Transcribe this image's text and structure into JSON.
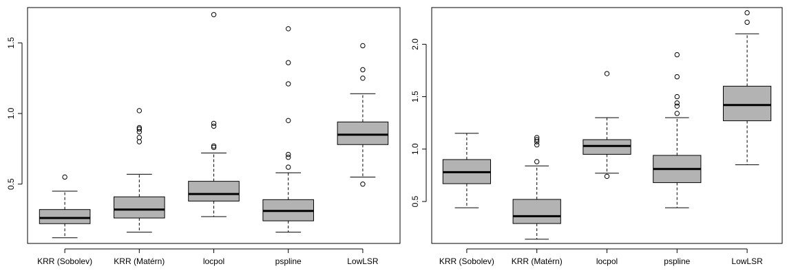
{
  "chart_data": [
    {
      "type": "boxplot",
      "categories": [
        "KRR (Sobolev)",
        "KRR (Matérn)",
        "locpol",
        "pspline",
        "LowLSR"
      ],
      "ylim": [
        0.08,
        1.75
      ],
      "yticks": [
        "0.5",
        "1.0",
        "1.5"
      ],
      "grid": false,
      "box_color": "#b3b3b3",
      "boxes": [
        {
          "category": "KRR (Sobolev)",
          "whisker_low": 0.12,
          "q1": 0.22,
          "median": 0.26,
          "q3": 0.32,
          "whisker_high": 0.45,
          "outliers": [
            0.55
          ]
        },
        {
          "category": "KRR (Matérn)",
          "whisker_low": 0.16,
          "q1": 0.26,
          "median": 0.32,
          "q3": 0.41,
          "whisker_high": 0.57,
          "outliers": [
            0.8,
            0.83,
            0.87,
            0.89,
            0.9,
            1.02
          ]
        },
        {
          "category": "locpol",
          "whisker_low": 0.27,
          "q1": 0.38,
          "median": 0.43,
          "q3": 0.52,
          "whisker_high": 0.72,
          "outliers": [
            0.76,
            0.77,
            0.91,
            0.93,
            1.7
          ]
        },
        {
          "category": "pspline",
          "whisker_low": 0.16,
          "q1": 0.24,
          "median": 0.31,
          "q3": 0.39,
          "whisker_high": 0.58,
          "outliers": [
            0.62,
            0.69,
            0.71,
            0.95,
            1.21,
            1.36,
            1.6
          ]
        },
        {
          "category": "LowLSR",
          "whisker_low": 0.55,
          "q1": 0.78,
          "median": 0.85,
          "q3": 0.94,
          "whisker_high": 1.14,
          "outliers": [
            0.5,
            1.25,
            1.31,
            1.48
          ]
        }
      ]
    },
    {
      "type": "boxplot",
      "categories": [
        "KRR (Sobolev)",
        "KRR (Matérn)",
        "locpol",
        "pspline",
        "LowLSR"
      ],
      "ylim": [
        0.1,
        2.35
      ],
      "yticks": [
        "0.5",
        "1.0",
        "1.5",
        "2.0"
      ],
      "grid": false,
      "box_color": "#b3b3b3",
      "boxes": [
        {
          "category": "KRR (Sobolev)",
          "whisker_low": 0.44,
          "q1": 0.67,
          "median": 0.78,
          "q3": 0.9,
          "whisker_high": 1.15,
          "outliers": []
        },
        {
          "category": "KRR (Matérn)",
          "whisker_low": 0.14,
          "q1": 0.29,
          "median": 0.36,
          "q3": 0.52,
          "whisker_high": 0.84,
          "outliers": [
            0.88,
            1.04,
            1.07,
            1.09,
            1.11
          ]
        },
        {
          "category": "locpol",
          "whisker_low": 0.77,
          "q1": 0.95,
          "median": 1.03,
          "q3": 1.09,
          "whisker_high": 1.3,
          "outliers": [
            0.74,
            1.72
          ]
        },
        {
          "category": "pspline",
          "whisker_low": 0.44,
          "q1": 0.68,
          "median": 0.81,
          "q3": 0.94,
          "whisker_high": 1.3,
          "outliers": [
            1.34,
            1.41,
            1.44,
            1.5,
            1.69,
            1.9
          ]
        },
        {
          "category": "LowLSR",
          "whisker_low": 0.85,
          "q1": 1.27,
          "median": 1.42,
          "q3": 1.6,
          "whisker_high": 2.1,
          "outliers": [
            2.21,
            2.3
          ]
        }
      ]
    }
  ]
}
